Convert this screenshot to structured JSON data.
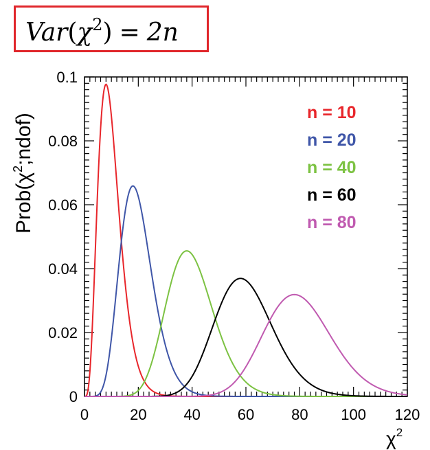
{
  "formula": {
    "var": "Var",
    "open": "(",
    "chi": "χ",
    "exp": "2",
    "close": ")",
    "eq": "=",
    "rhs": "2n",
    "border_color": "#e0262b"
  },
  "chart_data": {
    "type": "line",
    "ylabel_prefix": "Prob(",
    "ylabel_chi": "χ",
    "ylabel_exp": "2",
    "ylabel_suffix": ";ndof)",
    "xlabel_chi": "χ",
    "xlabel_exp": "2",
    "xlim": [
      0,
      120
    ],
    "ylim": [
      0,
      0.1
    ],
    "xticks": [
      "0",
      "20",
      "40",
      "60",
      "80",
      "100",
      "120"
    ],
    "yticks": [
      "0",
      "0.02",
      "0.04",
      "0.06",
      "0.08",
      "0.1"
    ],
    "legend_position": "top-right",
    "grid": false,
    "series": [
      {
        "name": "n = 10",
        "ndof": 10,
        "color": "#e8262b"
      },
      {
        "name": "n = 20",
        "ndof": 20,
        "color": "#3f56a8"
      },
      {
        "name": "n = 40",
        "ndof": 40,
        "color": "#7cc242"
      },
      {
        "name": "n = 60",
        "ndof": 60,
        "color": "#000000"
      },
      {
        "name": "n = 80",
        "ndof": 80,
        "color": "#c05ab0"
      }
    ]
  }
}
